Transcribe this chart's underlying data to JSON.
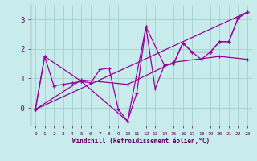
{
  "xlabel": "Windchill (Refroidissement éolien,°C)",
  "background_color": "#c8ecec",
  "grid_color": "#b0d8d8",
  "line_color": "#990099",
  "xlim": [
    -0.5,
    23.5
  ],
  "ylim": [
    -0.6,
    3.5
  ],
  "yticks": [
    0,
    1,
    2,
    3
  ],
  "ytick_labels": [
    "-0",
    "1",
    "2",
    "3"
  ],
  "xticks": [
    0,
    1,
    2,
    3,
    4,
    5,
    6,
    7,
    8,
    9,
    10,
    11,
    12,
    13,
    14,
    15,
    16,
    17,
    18,
    19,
    20,
    21,
    22,
    23
  ],
  "series": [
    {
      "x": [
        0,
        1,
        2,
        3,
        4,
        5,
        6,
        7,
        8,
        9,
        10,
        11,
        12,
        13,
        14,
        15,
        16,
        17,
        18,
        19,
        20,
        21,
        22,
        23
      ],
      "y": [
        -0.05,
        1.75,
        0.75,
        0.8,
        0.85,
        0.9,
        0.85,
        1.3,
        1.35,
        -0.05,
        -0.45,
        0.5,
        2.75,
        0.65,
        1.45,
        1.5,
        2.2,
        1.9,
        1.65,
        1.9,
        2.25,
        2.25,
        3.05,
        3.25
      ],
      "marker": true
    },
    {
      "x": [
        0,
        1,
        5,
        10,
        12,
        14,
        15,
        16,
        17,
        19,
        20,
        21,
        22,
        23
      ],
      "y": [
        -0.05,
        1.75,
        0.9,
        -0.45,
        2.75,
        1.45,
        1.5,
        2.2,
        1.9,
        1.9,
        2.25,
        2.25,
        3.05,
        3.25
      ],
      "marker": true
    },
    {
      "x": [
        0,
        23
      ],
      "y": [
        -0.05,
        3.25
      ],
      "marker": false
    },
    {
      "x": [
        0,
        5,
        10,
        15,
        20,
        23
      ],
      "y": [
        -0.05,
        0.95,
        0.8,
        1.55,
        1.75,
        1.65
      ],
      "marker": true
    }
  ]
}
